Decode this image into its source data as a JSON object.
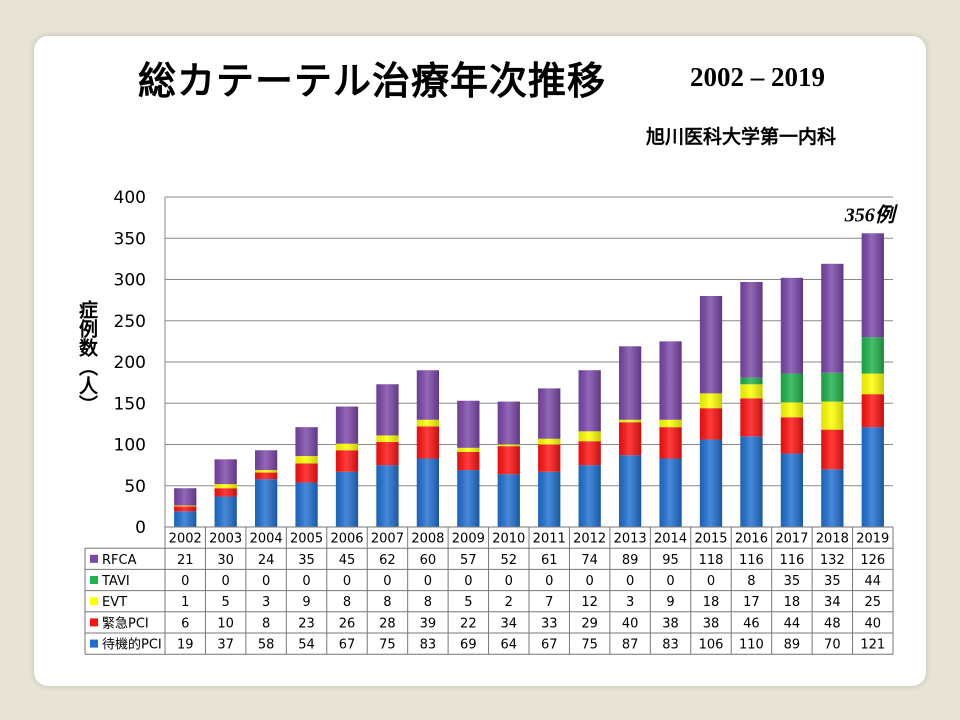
{
  "title": "総カテーテル治療年次推移",
  "year_range": "2002 – 2019",
  "department": "旭川医科大学第一内科",
  "chart_data": {
    "type": "bar",
    "stacked": true,
    "ylabel": "症例数（人）",
    "ylim": [
      0,
      400
    ],
    "yticks": [
      0,
      50,
      100,
      150,
      200,
      250,
      300,
      350,
      400
    ],
    "grid": true,
    "categories": [
      "2002",
      "2003",
      "2004",
      "2005",
      "2006",
      "2007",
      "2008",
      "2009",
      "2010",
      "2011",
      "2012",
      "2013",
      "2014",
      "2015",
      "2016",
      "2017",
      "2018",
      "2019"
    ],
    "annotation": "356例",
    "series": [
      {
        "name": "待機的PCI",
        "color": "#1f6fd1",
        "values": [
          19,
          37,
          58,
          54,
          67,
          75,
          83,
          69,
          64,
          67,
          75,
          87,
          83,
          106,
          110,
          89,
          70,
          121
        ]
      },
      {
        "name": "緊急PCI",
        "color": "#ff1111",
        "values": [
          6,
          10,
          8,
          23,
          26,
          28,
          39,
          22,
          34,
          33,
          29,
          40,
          38,
          38,
          46,
          44,
          48,
          40
        ]
      },
      {
        "name": "EVT",
        "color": "#ffff00",
        "values": [
          1,
          5,
          3,
          9,
          8,
          8,
          8,
          5,
          2,
          7,
          12,
          3,
          9,
          18,
          17,
          18,
          34,
          25
        ]
      },
      {
        "name": "TAVI",
        "color": "#1fb14a",
        "values": [
          0,
          0,
          0,
          0,
          0,
          0,
          0,
          0,
          0,
          0,
          0,
          0,
          0,
          0,
          8,
          35,
          35,
          44
        ]
      },
      {
        "name": "RFCA",
        "color": "#7a46a8",
        "values": [
          21,
          30,
          24,
          35,
          45,
          62,
          60,
          57,
          52,
          61,
          74,
          89,
          95,
          118,
          116,
          116,
          132,
          126
        ]
      }
    ],
    "table_row_order": [
      "RFCA",
      "TAVI",
      "EVT",
      "緊急PCI",
      "待機的PCI"
    ]
  }
}
